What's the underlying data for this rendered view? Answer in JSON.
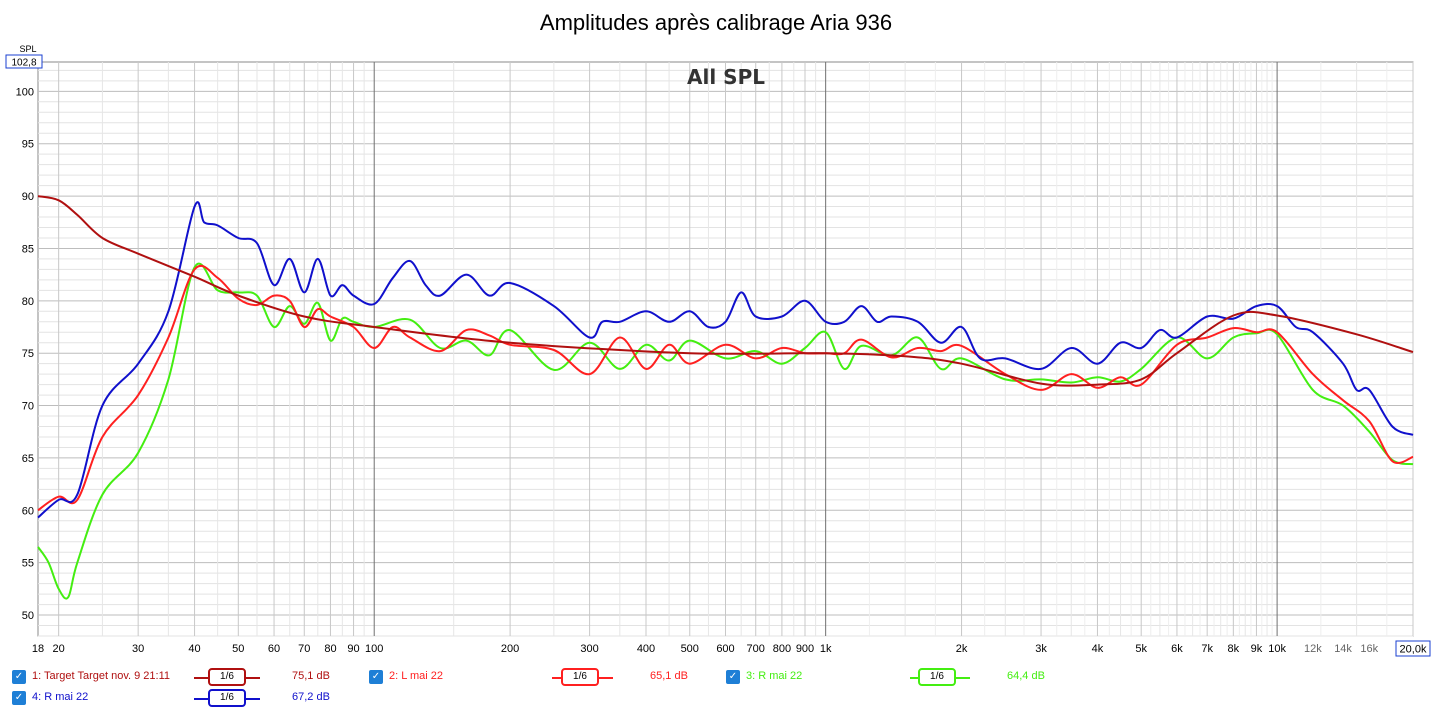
{
  "chart_data": {
    "type": "line",
    "title": "Amplitudes après calibrage Aria 936",
    "subtitle": "All SPL",
    "ylabel": "SPL",
    "y_top_readout": "102,8",
    "x_end_readout": "20,0k",
    "x_scale": "log",
    "xlim": [
      18,
      20000
    ],
    "ylim": [
      48,
      102.8
    ],
    "grid": true,
    "x_ticks": [
      {
        "v": 18,
        "label": "18"
      },
      {
        "v": 20,
        "label": "20"
      },
      {
        "v": 30,
        "label": "30"
      },
      {
        "v": 40,
        "label": "40"
      },
      {
        "v": 50,
        "label": "50"
      },
      {
        "v": 60,
        "label": "60"
      },
      {
        "v": 70,
        "label": "70"
      },
      {
        "v": 80,
        "label": "80"
      },
      {
        "v": 90,
        "label": "90"
      },
      {
        "v": 100,
        "label": "100"
      },
      {
        "v": 200,
        "label": "200"
      },
      {
        "v": 300,
        "label": "300"
      },
      {
        "v": 400,
        "label": "400"
      },
      {
        "v": 500,
        "label": "500"
      },
      {
        "v": 600,
        "label": "600"
      },
      {
        "v": 700,
        "label": "700"
      },
      {
        "v": 800,
        "label": "800"
      },
      {
        "v": 900,
        "label": "900"
      },
      {
        "v": 1000,
        "label": "1k"
      },
      {
        "v": 2000,
        "label": "2k"
      },
      {
        "v": 3000,
        "label": "3k"
      },
      {
        "v": 4000,
        "label": "4k"
      },
      {
        "v": 5000,
        "label": "5k"
      },
      {
        "v": 6000,
        "label": "6k"
      },
      {
        "v": 7000,
        "label": "7k"
      },
      {
        "v": 8000,
        "label": "8k"
      },
      {
        "v": 9000,
        "label": "9k"
      },
      {
        "v": 10000,
        "label": "10k"
      },
      {
        "v": 12000,
        "label": "12k"
      },
      {
        "v": 14000,
        "label": "14k"
      },
      {
        "v": 16000,
        "label": "16k"
      }
    ],
    "y_ticks": [
      50,
      55,
      60,
      65,
      70,
      75,
      80,
      85,
      90,
      95,
      100
    ],
    "series": [
      {
        "name": "1: Target Target nov. 9 21:11",
        "color": "#b01010",
        "level": "75,1 dB",
        "smoothing": "1/6",
        "x": [
          18,
          20,
          22,
          25,
          30,
          40,
          50,
          70,
          100,
          200,
          500,
          1000,
          1500,
          2000,
          3000,
          4000,
          5000,
          6000,
          8000,
          10000,
          15000,
          20000
        ],
        "y": [
          90,
          89.6,
          88.2,
          86,
          84.5,
          82.3,
          80.5,
          78.5,
          77.5,
          76,
          75,
          75,
          74.7,
          74,
          72.1,
          72,
          72.5,
          75,
          78.6,
          78.6,
          76.8,
          75.1
        ]
      },
      {
        "name": "2: L mai 22",
        "color": "#ff2020",
        "level": "65,1 dB",
        "smoothing": "1/6",
        "x": [
          18,
          20,
          22,
          25,
          30,
          35,
          40,
          45,
          50,
          55,
          60,
          65,
          70,
          75,
          80,
          90,
          100,
          110,
          120,
          140,
          160,
          180,
          200,
          250,
          300,
          350,
          400,
          450,
          500,
          600,
          700,
          800,
          900,
          1000,
          1100,
          1200,
          1400,
          1600,
          1800,
          2000,
          2500,
          3000,
          3500,
          4000,
          4500,
          5000,
          6000,
          7000,
          8000,
          9000,
          10000,
          12000,
          14000,
          16000,
          18000,
          20000
        ],
        "y": [
          60,
          61.3,
          61,
          67,
          71,
          76.5,
          83,
          82.2,
          80.2,
          79.6,
          80.5,
          80,
          77.5,
          79.2,
          78.5,
          77.5,
          75.5,
          77.5,
          76.5,
          75.2,
          77.2,
          76.7,
          75.8,
          75.3,
          73,
          76.5,
          73.5,
          75.8,
          74,
          75.8,
          74.5,
          75.5,
          75,
          75,
          75,
          76.3,
          74.6,
          75.5,
          75.2,
          75.7,
          73,
          71.5,
          73,
          71.7,
          72.7,
          72,
          75.8,
          76.5,
          77.4,
          77,
          77,
          73,
          70.5,
          68.5,
          64.7,
          65.1
        ]
      },
      {
        "name": "3: R mai 22",
        "color": "#44ee11",
        "level": "64,4 dB",
        "smoothing": "1/6",
        "x": [
          18,
          19,
          20,
          21,
          22,
          25,
          30,
          35,
          40,
          45,
          50,
          55,
          60,
          65,
          70,
          75,
          80,
          85,
          90,
          100,
          120,
          140,
          160,
          180,
          200,
          250,
          300,
          350,
          400,
          450,
          500,
          600,
          700,
          800,
          900,
          1000,
          1100,
          1200,
          1400,
          1600,
          1800,
          2000,
          2500,
          3000,
          3500,
          4000,
          4500,
          5000,
          6000,
          7000,
          8000,
          9000,
          10000,
          12000,
          14000,
          16000,
          18000,
          20000
        ],
        "y": [
          56.5,
          55,
          52.5,
          51.7,
          55,
          61.5,
          65.5,
          72.5,
          83.2,
          81,
          80.8,
          80.5,
          77.5,
          79.5,
          77.8,
          79.8,
          76.2,
          78.3,
          78,
          77.5,
          78.2,
          75.5,
          76.2,
          74.8,
          77.2,
          73.4,
          76,
          73.5,
          75.8,
          74.3,
          76.2,
          74.5,
          75.2,
          74,
          75.5,
          77,
          73.5,
          75.7,
          74.8,
          76.5,
          73.5,
          74.5,
          72.5,
          72.5,
          72.2,
          72.7,
          72.3,
          73.5,
          76.5,
          74.5,
          76.5,
          76.9,
          76.8,
          71.5,
          70,
          67.5,
          64.8,
          64.4
        ]
      },
      {
        "name": "4: R mai 22",
        "color": "#1010cc",
        "level": "67,2 dB",
        "smoothing": "1/6",
        "x": [
          18,
          20,
          22,
          25,
          30,
          35,
          40,
          42,
          45,
          50,
          55,
          60,
          65,
          70,
          75,
          80,
          85,
          90,
          100,
          110,
          120,
          130,
          140,
          160,
          180,
          200,
          250,
          300,
          320,
          350,
          400,
          450,
          500,
          550,
          600,
          650,
          700,
          800,
          900,
          1000,
          1100,
          1200,
          1300,
          1400,
          1600,
          1800,
          2000,
          2200,
          2500,
          3000,
          3500,
          4000,
          4500,
          5000,
          5500,
          6000,
          7000,
          8000,
          9000,
          10000,
          11000,
          12000,
          14000,
          15000,
          16000,
          18000,
          20000
        ],
        "y": [
          59.3,
          61,
          61.5,
          70,
          74,
          79,
          89,
          87.5,
          87.2,
          86,
          85.5,
          81.5,
          84,
          80.8,
          84,
          80.5,
          81.5,
          80.5,
          79.7,
          82.2,
          83.8,
          81.5,
          80.5,
          82.5,
          80.5,
          81.7,
          79.5,
          76.5,
          78,
          78,
          79,
          78,
          79,
          77.5,
          78,
          80.8,
          78.5,
          78.5,
          80,
          78,
          78,
          79.5,
          78,
          78.5,
          78,
          76,
          77.5,
          74.5,
          74.5,
          73.5,
          75.5,
          74,
          76,
          75.5,
          77.2,
          76.5,
          78.5,
          78.3,
          79.5,
          79.5,
          77.5,
          77,
          74,
          71.5,
          71.5,
          68,
          67.2
        ]
      }
    ]
  }
}
